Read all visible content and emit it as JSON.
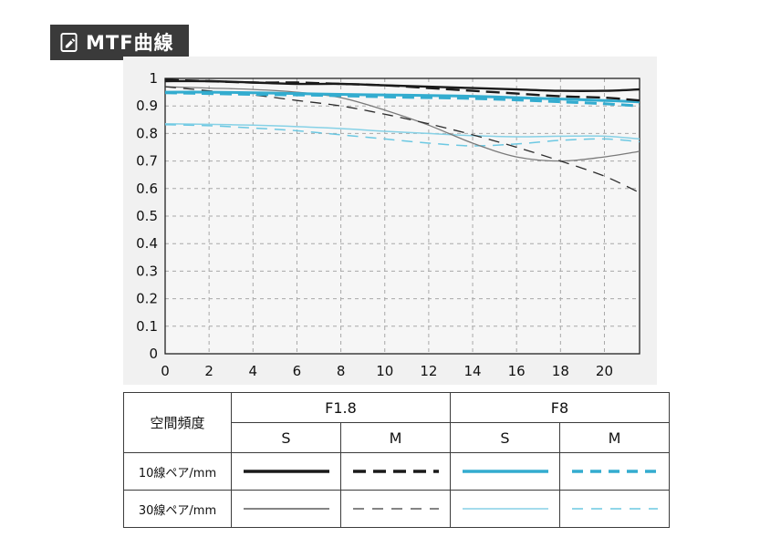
{
  "header": {
    "title": "MTF曲線"
  },
  "chart_data": {
    "type": "line",
    "title": "MTF曲線",
    "xlabel": "",
    "ylabel": "",
    "xlim": [
      0,
      21.6
    ],
    "ylim": [
      0,
      1
    ],
    "x_ticks": [
      0,
      2,
      4,
      6,
      8,
      10,
      12,
      14,
      16,
      18,
      20
    ],
    "y_ticks": [
      0,
      0.1,
      0.2,
      0.3,
      0.4,
      0.5,
      0.6,
      0.7,
      0.8,
      0.9,
      1
    ],
    "grid": "dashed",
    "legend_position": "bottom-table",
    "x": [
      0,
      2,
      4,
      6,
      8,
      10,
      12,
      14,
      16,
      18,
      20,
      21.6
    ],
    "series": [
      {
        "name": "F8 S 30線ペア/mm",
        "color": "#86d1e6",
        "width": 1.5,
        "dash": "",
        "values": [
          0.835,
          0.833,
          0.83,
          0.825,
          0.818,
          0.808,
          0.8,
          0.792,
          0.788,
          0.79,
          0.79,
          0.78
        ]
      },
      {
        "name": "F8 M 30線ペア/mm",
        "color": "#6cc8e2",
        "width": 1.5,
        "dash": "12,8",
        "values": [
          0.832,
          0.828,
          0.82,
          0.81,
          0.795,
          0.78,
          0.765,
          0.755,
          0.762,
          0.775,
          0.78,
          0.77
        ]
      },
      {
        "name": "F1.8 S 30線ペア/mm",
        "color": "#7a7a7a",
        "width": 1.3,
        "dash": "",
        "values": [
          0.97,
          0.965,
          0.96,
          0.95,
          0.93,
          0.885,
          0.83,
          0.765,
          0.715,
          0.7,
          0.715,
          0.735
        ]
      },
      {
        "name": "F1.8 M 30線ペア/mm",
        "color": "#2b2b2b",
        "width": 1.3,
        "dash": "12,8",
        "values": [
          0.97,
          0.955,
          0.94,
          0.92,
          0.9,
          0.87,
          0.835,
          0.795,
          0.75,
          0.7,
          0.645,
          0.585
        ]
      },
      {
        "name": "F8 S 10線ペア/mm",
        "color": "#33accf",
        "width": 3.0,
        "dash": "",
        "values": [
          0.95,
          0.95,
          0.948,
          0.945,
          0.942,
          0.94,
          0.938,
          0.935,
          0.93,
          0.925,
          0.92,
          0.915
        ]
      },
      {
        "name": "F8 M 10線ペア/mm",
        "color": "#33accf",
        "width": 3.0,
        "dash": "13,7",
        "values": [
          0.948,
          0.945,
          0.942,
          0.94,
          0.937,
          0.933,
          0.93,
          0.927,
          0.922,
          0.915,
          0.908,
          0.9
        ]
      },
      {
        "name": "F1.8 S 10線ペア/mm",
        "color": "#1a1a1a",
        "width": 2.4,
        "dash": "",
        "values": [
          0.99,
          0.99,
          0.985,
          0.98,
          0.98,
          0.975,
          0.97,
          0.965,
          0.96,
          0.955,
          0.955,
          0.96
        ]
      },
      {
        "name": "F1.8 M 10線ペア/mm",
        "color": "#1a1a1a",
        "width": 2.4,
        "dash": "15,7",
        "values": [
          0.995,
          0.99,
          0.985,
          0.985,
          0.98,
          0.975,
          0.965,
          0.955,
          0.945,
          0.935,
          0.93,
          0.92
        ]
      }
    ]
  },
  "legend": {
    "col_header": "空間頻度",
    "groups": [
      {
        "label": "F1.8"
      },
      {
        "label": "F8"
      }
    ],
    "subcols": [
      "S",
      "M",
      "S",
      "M"
    ],
    "rows": [
      {
        "label": "10線ペア/mm",
        "samples": [
          {
            "color": "#1a1a1a",
            "width": 3.5,
            "dash": ""
          },
          {
            "color": "#1a1a1a",
            "width": 3.5,
            "dash": "14,8"
          },
          {
            "color": "#33accf",
            "width": 3.5,
            "dash": ""
          },
          {
            "color": "#33accf",
            "width": 3.5,
            "dash": "12,8"
          }
        ]
      },
      {
        "label": "30線ペア/mm",
        "samples": [
          {
            "color": "#3a3a3a",
            "width": 1.3,
            "dash": ""
          },
          {
            "color": "#3a3a3a",
            "width": 1.3,
            "dash": "12,9"
          },
          {
            "color": "#86d1e6",
            "width": 1.6,
            "dash": ""
          },
          {
            "color": "#6cc8e2",
            "width": 1.6,
            "dash": "12,9"
          }
        ]
      }
    ]
  },
  "colors": {
    "badge_bg": "#3a3a3a",
    "panel_bg": "#f1f1f1",
    "f18": "#1a1a1a",
    "f8": "#33accf",
    "f8_thin": "#86d1e6",
    "grid": "#a8a8a8",
    "axis": "#222222"
  }
}
